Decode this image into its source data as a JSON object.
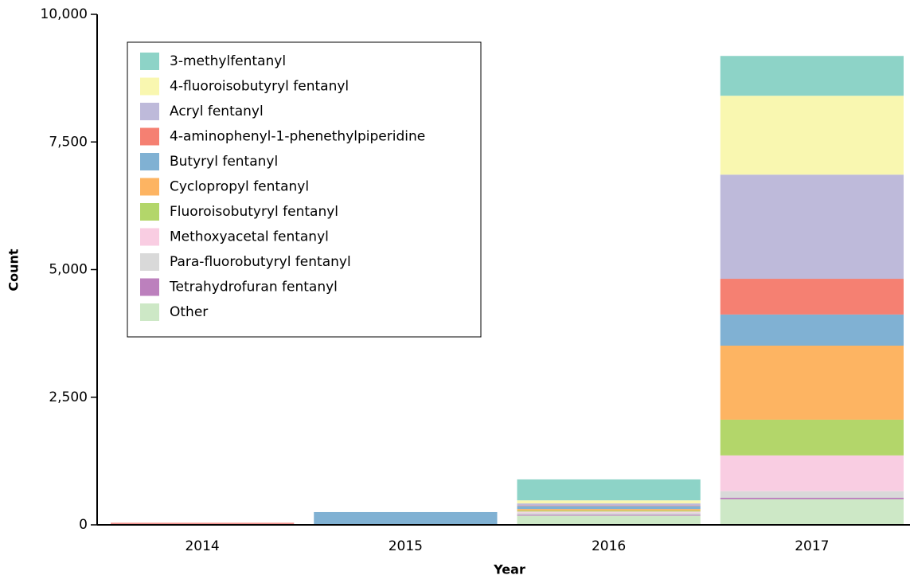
{
  "chart_data": {
    "type": "stacked_bar",
    "xlabel": "Year",
    "ylabel": "Count",
    "categories": [
      "2014",
      "2015",
      "2016",
      "2017"
    ],
    "series": [
      {
        "name": "3-methylfentanyl",
        "color": "#8dd3c7",
        "values": [
          0,
          0,
          410,
          780
        ]
      },
      {
        "name": "4-fluoroisobutyryl fentanyl",
        "color": "#f9f7b0",
        "values": [
          0,
          0,
          60,
          1545
        ]
      },
      {
        "name": "Acryl fentanyl",
        "color": "#bebada",
        "values": [
          0,
          0,
          40,
          2040
        ]
      },
      {
        "name": "4-aminophenyl-1-phenethylpiperidine",
        "color": "#f58072",
        "values": [
          20,
          0,
          10,
          700
        ]
      },
      {
        "name": "Butyryl fentanyl",
        "color": "#80b1d3",
        "values": [
          0,
          240,
          60,
          610
        ]
      },
      {
        "name": "Cyclopropyl fentanyl",
        "color": "#fdb462",
        "values": [
          0,
          0,
          30,
          1450
        ]
      },
      {
        "name": "Fluoroisobutyryl fentanyl",
        "color": "#b3d66a",
        "values": [
          0,
          0,
          20,
          700
        ]
      },
      {
        "name": "Methoxyacetal fentanyl",
        "color": "#f9cde2",
        "values": [
          0,
          0,
          20,
          700
        ]
      },
      {
        "name": "Para-fluorobutyryl fentanyl",
        "color": "#d9d9d9",
        "values": [
          0,
          0,
          40,
          130
        ]
      },
      {
        "name": "Tetrahydrofuran fentanyl",
        "color": "#bc80bd",
        "values": [
          20,
          0,
          20,
          30
        ]
      },
      {
        "name": "Other",
        "color": "#cde8c6",
        "values": [
          0,
          10,
          180,
          500
        ]
      }
    ],
    "ylim": [
      0,
      10000
    ],
    "yticks": [
      0,
      {
        "value": 2500,
        "label": "2,500"
      },
      {
        "value": 5000,
        "label": "5,000"
      },
      {
        "value": 7500,
        "label": "7,500"
      },
      {
        "value": 10000,
        "label": "10,000"
      }
    ],
    "legend": "upper left"
  }
}
